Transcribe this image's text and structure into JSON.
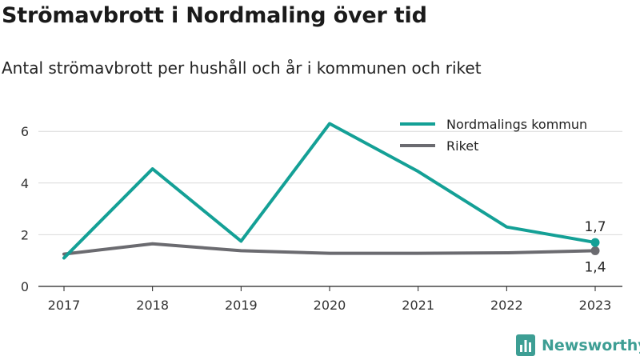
{
  "title": "Strömavbrott i Nordmaling över tid",
  "subtitle": "Antal strömavbrott per hushåll och år i kommunen och riket",
  "brand": {
    "name": "Newsworthy",
    "icon": "bar-chart-icon",
    "color": "#3d9e94"
  },
  "chart_data": {
    "type": "line",
    "title": "Strömavbrott i Nordmaling över tid",
    "subtitle": "Antal strömavbrott per hushåll och år i kommunen och riket",
    "xlabel": "",
    "ylabel": "",
    "x": [
      "2017",
      "2018",
      "2019",
      "2020",
      "2021",
      "2022",
      "2023"
    ],
    "ylim": [
      0,
      7
    ],
    "yticks": [
      0,
      2,
      4,
      6
    ],
    "grid": true,
    "legend": "top-right",
    "series": [
      {
        "name": "Nordmalings kommun",
        "color": "#14a096",
        "values": [
          1.1,
          4.55,
          1.75,
          6.3,
          4.45,
          2.3,
          1.7
        ],
        "end_label": "1,7"
      },
      {
        "name": "Riket",
        "color": "#6b6b70",
        "values": [
          1.25,
          1.65,
          1.38,
          1.28,
          1.28,
          1.3,
          1.38
        ],
        "end_label": "1,4"
      }
    ]
  }
}
